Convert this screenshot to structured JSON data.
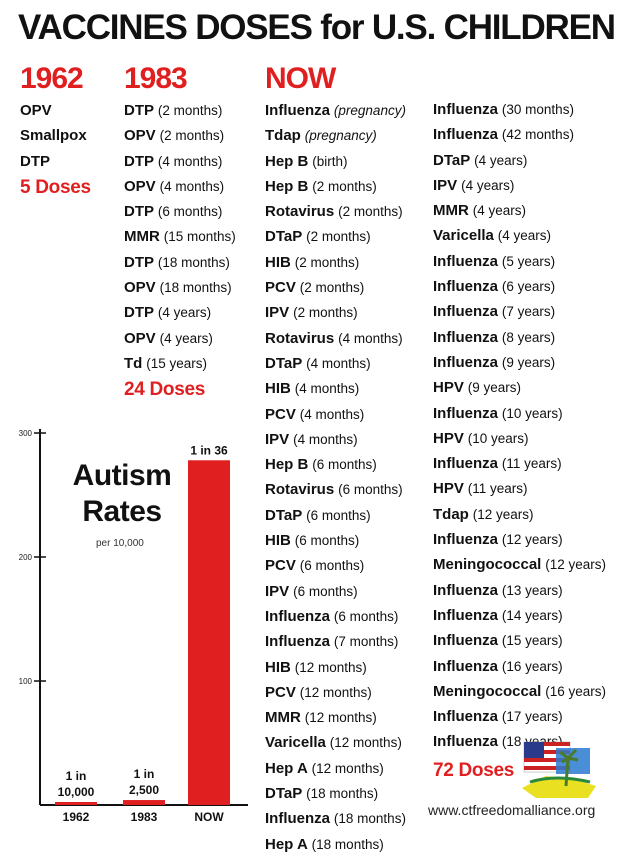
{
  "title": "VACCINES DOSES for U.S. CHILDREN",
  "schedules": {
    "y1962": {
      "year": "1962",
      "items": [
        {
          "name": "OPV",
          "detail": ""
        },
        {
          "name": "Smallpox",
          "detail": ""
        },
        {
          "name": "DTP",
          "detail": ""
        }
      ],
      "total": "5 Doses"
    },
    "y1983": {
      "year": "1983",
      "items": [
        {
          "name": "DTP",
          "detail": "(2 months)"
        },
        {
          "name": "OPV",
          "detail": "(2 months)"
        },
        {
          "name": "DTP",
          "detail": "(4 months)"
        },
        {
          "name": "OPV",
          "detail": "(4 months)"
        },
        {
          "name": "DTP",
          "detail": "(6 months)"
        },
        {
          "name": "MMR",
          "detail": "(15 months)"
        },
        {
          "name": "DTP",
          "detail": "(18 months)"
        },
        {
          "name": "OPV",
          "detail": "(18 months)"
        },
        {
          "name": "DTP",
          "detail": "(4 years)"
        },
        {
          "name": "OPV",
          "detail": "(4 years)"
        },
        {
          "name": "Td",
          "detail": "(15 years)"
        }
      ],
      "total": "24 Doses"
    },
    "now": {
      "year": "NOW",
      "items_col1": [
        {
          "name": "Influenza",
          "detail": "(pregnancy)"
        },
        {
          "name": "Tdap",
          "detail": "(pregnancy)"
        },
        {
          "name": "Hep B",
          "detail": "(birth)"
        },
        {
          "name": "Hep B",
          "detail": "(2 months)"
        },
        {
          "name": "Rotavirus",
          "detail": "(2 months)"
        },
        {
          "name": "DTaP",
          "detail": "(2 months)"
        },
        {
          "name": "HIB",
          "detail": "(2 months)"
        },
        {
          "name": "PCV",
          "detail": "(2 months)"
        },
        {
          "name": "IPV",
          "detail": "(2 months)"
        },
        {
          "name": "Rotavirus",
          "detail": "(4 months)"
        },
        {
          "name": "DTaP",
          "detail": "(4 months)"
        },
        {
          "name": "HIB",
          "detail": "(4 months)"
        },
        {
          "name": "PCV",
          "detail": "(4 months)"
        },
        {
          "name": "IPV",
          "detail": "(4 months)"
        },
        {
          "name": "Hep B",
          "detail": "(6 months)"
        },
        {
          "name": "Rotavirus",
          "detail": "(6 months)"
        },
        {
          "name": "DTaP",
          "detail": "(6 months)"
        },
        {
          "name": "HIB",
          "detail": "(6 months)"
        },
        {
          "name": "PCV",
          "detail": "(6 months)"
        },
        {
          "name": "IPV",
          "detail": "(6 months)"
        },
        {
          "name": "Influenza",
          "detail": "(6 months)"
        },
        {
          "name": "Influenza",
          "detail": "(7 months)"
        },
        {
          "name": "HIB",
          "detail": "(12 months)"
        },
        {
          "name": "PCV",
          "detail": "(12 months)"
        },
        {
          "name": "MMR",
          "detail": "(12 months)"
        },
        {
          "name": "Varicella",
          "detail": "(12 months)"
        },
        {
          "name": "Hep A",
          "detail": "(12 months)"
        },
        {
          "name": "DTaP",
          "detail": "(18 months)"
        },
        {
          "name": "Influenza",
          "detail": "(18 months)"
        },
        {
          "name": "Hep A",
          "detail": "(18 months)"
        }
      ],
      "items_col2": [
        {
          "name": "Influenza",
          "detail": "(30 months)"
        },
        {
          "name": "Influenza",
          "detail": "(42 months)"
        },
        {
          "name": "DTaP",
          "detail": "(4 years)"
        },
        {
          "name": "IPV",
          "detail": "(4 years)"
        },
        {
          "name": "MMR",
          "detail": "(4 years)"
        },
        {
          "name": "Varicella",
          "detail": "(4 years)"
        },
        {
          "name": "Influenza",
          "detail": "(5 years)"
        },
        {
          "name": "Influenza",
          "detail": "(6 years)"
        },
        {
          "name": "Influenza",
          "detail": "(7 years)"
        },
        {
          "name": "Influenza",
          "detail": "(8 years)"
        },
        {
          "name": "Influenza",
          "detail": "(9 years)"
        },
        {
          "name": "HPV",
          "detail": "(9 years)"
        },
        {
          "name": "Influenza",
          "detail": "(10 years)"
        },
        {
          "name": "HPV",
          "detail": "(10 years)"
        },
        {
          "name": "Influenza",
          "detail": "(11 years)"
        },
        {
          "name": "HPV",
          "detail": "(11 years)"
        },
        {
          "name": "Tdap",
          "detail": "(12 years)"
        },
        {
          "name": "Influenza",
          "detail": "(12 years)"
        },
        {
          "name": "Meningococcal",
          "detail": "(12 years)"
        },
        {
          "name": "Influenza",
          "detail": "(13 years)"
        },
        {
          "name": "Influenza",
          "detail": "(14 years)"
        },
        {
          "name": "Influenza",
          "detail": "(15 years)"
        },
        {
          "name": "Influenza",
          "detail": "(16 years)"
        },
        {
          "name": "Meningococcal",
          "detail": "(16 years)"
        },
        {
          "name": "Influenza",
          "detail": "(17 years)"
        },
        {
          "name": "Influenza",
          "detail": "(18 years)"
        }
      ],
      "total": "72 Doses"
    }
  },
  "chart_data": {
    "type": "bar",
    "title": "Autism Rates",
    "subtitle": "per 10,000",
    "categories": [
      "1962",
      "1983",
      "NOW"
    ],
    "values": [
      1,
      4,
      278
    ],
    "data_labels": [
      [
        "1 in",
        "10,000"
      ],
      [
        "1 in",
        "2,500"
      ],
      [
        "1 in 36"
      ]
    ],
    "yticks": [
      100,
      200,
      300
    ],
    "ylim": [
      0,
      300
    ],
    "bar_color": "#e02020"
  },
  "footer": {
    "url": "www.ctfreedomalliance.org"
  },
  "colors": {
    "accent_red": "#e02020",
    "text": "#111111"
  }
}
